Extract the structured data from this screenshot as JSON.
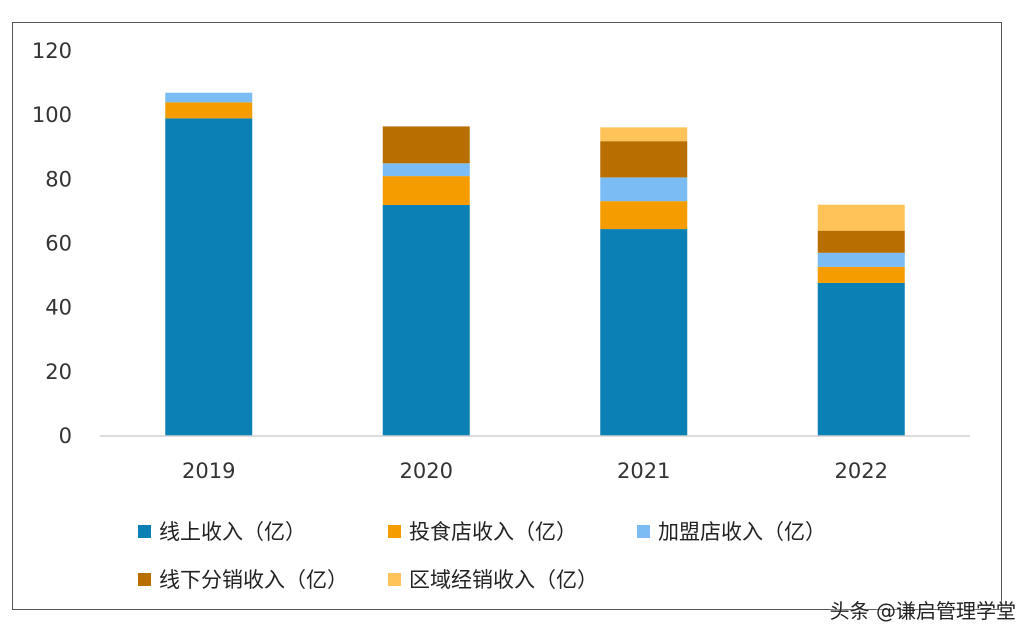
{
  "chart_data": {
    "type": "bar",
    "stacked": true,
    "categories": [
      "2019",
      "2020",
      "2021",
      "2022"
    ],
    "series": [
      {
        "name": "线上收入（亿）",
        "color": "#0a80b5",
        "values": [
          99,
          72,
          64.5,
          47.7
        ]
      },
      {
        "name": "投食店收入（亿）",
        "color": "#f59c00",
        "values": [
          5,
          9,
          8.7,
          5
        ]
      },
      {
        "name": "加盟店收入（亿）",
        "color": "#7cbcf5",
        "values": [
          3,
          4,
          7.4,
          4.4
        ]
      },
      {
        "name": "线下分销收入（亿）",
        "color": "#b86f00",
        "values": [
          0,
          11.5,
          11.3,
          6.9
        ]
      },
      {
        "name": "区域经销收入（亿）",
        "color": "#ffc35a",
        "values": [
          0,
          0,
          4.3,
          8.1
        ]
      }
    ],
    "ylim": [
      0,
      120
    ],
    "yticks": [
      0,
      20,
      40,
      60,
      80,
      100,
      120
    ],
    "grid": false,
    "legend_position": "bottom"
  },
  "credit": "头条 @谦启管理学堂"
}
